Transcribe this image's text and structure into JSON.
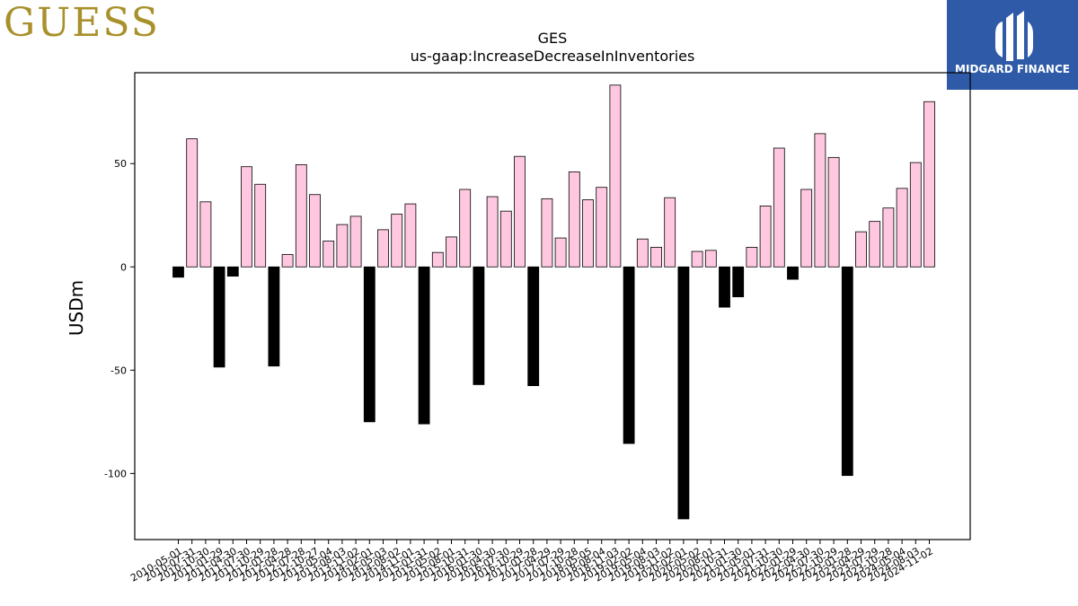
{
  "logo": {
    "brand": "GUESS",
    "partner": "MIDGARD FINANCE"
  },
  "colors": {
    "positive": "#ffc8e0",
    "negative": "#000000",
    "edge": "#000000",
    "partner_bg": "#2f5aa8",
    "brand_gold": "#a8902a"
  },
  "chart_data": {
    "type": "bar",
    "title": "GES",
    "subtitle": "us-gaap:IncreaseDecreaseInInventories",
    "xlabel": "",
    "ylabel": "USDm",
    "ylim": [
      -132,
      94
    ],
    "yticks": [
      -100,
      -50,
      0,
      50
    ],
    "grid": false,
    "categories": [
      "2010-05-01",
      "2010-07-31",
      "2010-10-30",
      "2011-01-29",
      "2011-04-30",
      "2011-07-30",
      "2011-10-29",
      "2012-01-28",
      "2012-04-28",
      "2012-07-28",
      "2012-10-27",
      "2013-05-04",
      "2013-08-03",
      "2013-11-02",
      "2014-02-01",
      "2014-05-03",
      "2014-08-02",
      "2014-11-01",
      "2015-01-31",
      "2015-05-02",
      "2015-08-01",
      "2015-10-31",
      "2016-01-30",
      "2016-04-30",
      "2016-07-30",
      "2016-10-29",
      "2017-01-28",
      "2017-04-29",
      "2017-07-29",
      "2017-10-28",
      "2018-05-05",
      "2018-08-04",
      "2018-11-03",
      "2019-02-02",
      "2019-05-04",
      "2019-08-03",
      "2019-11-02",
      "2020-02-01",
      "2020-05-02",
      "2020-08-01",
      "2020-10-31",
      "2021-01-30",
      "2021-05-01",
      "2021-07-31",
      "2021-10-30",
      "2022-01-29",
      "2022-04-30",
      "2022-07-30",
      "2022-10-29",
      "2023-01-28",
      "2023-04-29",
      "2023-07-29",
      "2023-10-28",
      "2024-05-04",
      "2024-08-03",
      "2024-11-02"
    ],
    "values": [
      -5,
      62,
      31.5,
      -48.5,
      -4.5,
      48.5,
      40,
      -48,
      6,
      49.5,
      35,
      12.5,
      20.5,
      24.5,
      -75,
      18,
      25.5,
      30.5,
      -76,
      7,
      14.5,
      37.5,
      -57,
      34,
      27,
      53.5,
      -57.5,
      33,
      14,
      46,
      32.5,
      38.5,
      88,
      -85.5,
      13.5,
      9.5,
      33.5,
      -122,
      7.5,
      8,
      -19.5,
      -14.5,
      9.5,
      29.5,
      57.5,
      -6,
      37.5,
      64.5,
      53,
      -101,
      17,
      22,
      28.5,
      38,
      50.5,
      80
    ]
  }
}
